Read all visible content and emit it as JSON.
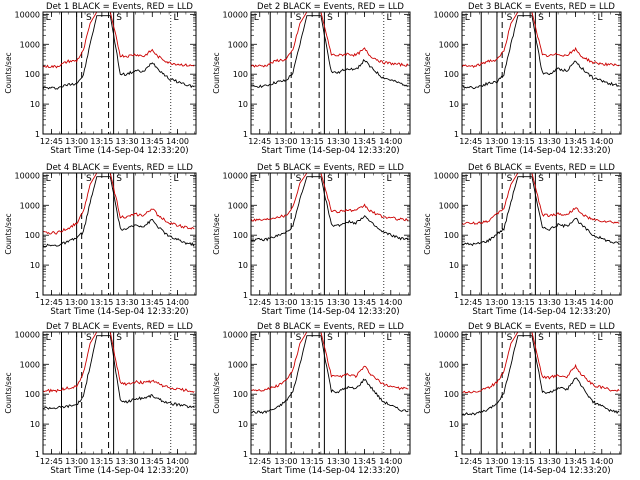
{
  "figure": {
    "panel_title_template": "Det {n} BLACK = Events, RED = LLD",
    "xlabel": "Start Time (14-Sep-04 12:33:20)",
    "ylabel": "Counts/sec"
  },
  "chart_data": [
    {
      "type": "line",
      "title": "Det 1 BLACK = Events, RED = LLD",
      "xlabel": "Start Time (14-Sep-04 12:33:20)",
      "ylabel": "Counts/sec",
      "xticks": [
        "12:45",
        "13:00",
        "13:15",
        "13:30",
        "13:45",
        "14:00"
      ],
      "yticks": [
        "1",
        "10",
        "100",
        "1000",
        "10000"
      ],
      "ylim": [
        1,
        12000
      ],
      "yscale": "log",
      "series": [
        {
          "name": "Events",
          "color": "#000000",
          "x": [
            "12:40",
            "12:48",
            "12:55",
            "13:00",
            "13:04",
            "13:08",
            "13:12",
            "13:20",
            "13:26",
            "13:30",
            "13:35",
            "13:40",
            "13:45",
            "13:48",
            "13:55",
            "14:05",
            "14:10"
          ],
          "y": [
            35,
            34,
            45,
            50,
            90,
            1000,
            9000,
            9000,
            100,
            100,
            130,
            120,
            260,
            160,
            70,
            45,
            38
          ]
        },
        {
          "name": "LLD",
          "color": "#cc0000",
          "x": [
            "12:40",
            "12:48",
            "12:55",
            "13:00",
            "13:04",
            "13:08",
            "13:12",
            "13:20",
            "13:26",
            "13:30",
            "13:35",
            "13:40",
            "13:45",
            "13:48",
            "13:55",
            "14:05",
            "14:10"
          ],
          "y": [
            180,
            180,
            270,
            280,
            600,
            5000,
            12000,
            12000,
            420,
            400,
            460,
            400,
            640,
            400,
            240,
            200,
            190
          ]
        }
      ],
      "annotations": [
        "L",
        "S",
        "S",
        "L"
      ]
    },
    {
      "type": "line",
      "title": "Det 2 BLACK = Events, RED = LLD",
      "xlabel": "Start Time (14-Sep-04 12:33:20)",
      "ylabel": "Counts/sec",
      "xticks": [
        "12:45",
        "13:00",
        "13:15",
        "13:30",
        "13:45",
        "14:00"
      ],
      "yticks": [
        "1",
        "10",
        "100",
        "1000",
        "10000"
      ],
      "ylim": [
        1,
        12000
      ],
      "yscale": "log",
      "series": [
        {
          "name": "Events",
          "color": "#000000",
          "x": [
            "12:40",
            "12:48",
            "12:55",
            "13:00",
            "13:04",
            "13:08",
            "13:12",
            "13:20",
            "13:26",
            "13:30",
            "13:35",
            "13:40",
            "13:45",
            "13:48",
            "13:55",
            "14:05",
            "14:10"
          ],
          "y": [
            40,
            40,
            55,
            60,
            110,
            1000,
            9000,
            9000,
            120,
            110,
            160,
            140,
            300,
            180,
            80,
            50,
            42
          ]
        },
        {
          "name": "LLD",
          "color": "#cc0000",
          "x": [
            "12:40",
            "12:48",
            "12:55",
            "13:00",
            "13:04",
            "13:08",
            "13:12",
            "13:20",
            "13:26",
            "13:30",
            "13:35",
            "13:40",
            "13:45",
            "13:48",
            "13:55",
            "14:05",
            "14:10"
          ],
          "y": [
            190,
            190,
            290,
            300,
            650,
            5000,
            12000,
            12000,
            450,
            420,
            480,
            430,
            700,
            420,
            250,
            210,
            200
          ]
        }
      ],
      "annotations": [
        "L",
        "S",
        "S",
        "L"
      ]
    },
    {
      "type": "line",
      "title": "Det 3 BLACK = Events, RED = LLD",
      "xlabel": "Start Time (14-Sep-04 12:33:20)",
      "ylabel": "Counts/sec",
      "xticks": [
        "12:45",
        "13:00",
        "13:15",
        "13:30",
        "13:45",
        "14:00"
      ],
      "yticks": [
        "1",
        "10",
        "100",
        "1000",
        "10000"
      ],
      "ylim": [
        1,
        12000
      ],
      "yscale": "log",
      "series": [
        {
          "name": "Events",
          "color": "#000000",
          "x": [
            "12:40",
            "12:48",
            "12:55",
            "13:00",
            "13:04",
            "13:08",
            "13:12",
            "13:20",
            "13:26",
            "13:30",
            "13:35",
            "13:40",
            "13:45",
            "13:48",
            "13:55",
            "14:05",
            "14:10"
          ],
          "y": [
            38,
            36,
            50,
            55,
            100,
            1000,
            9000,
            9000,
            110,
            100,
            150,
            130,
            280,
            170,
            75,
            48,
            40
          ]
        },
        {
          "name": "LLD",
          "color": "#cc0000",
          "x": [
            "12:40",
            "12:48",
            "12:55",
            "13:00",
            "13:04",
            "13:08",
            "13:12",
            "13:20",
            "13:26",
            "13:30",
            "13:35",
            "13:40",
            "13:45",
            "13:48",
            "13:55",
            "14:05",
            "14:10"
          ],
          "y": [
            185,
            185,
            280,
            290,
            620,
            5000,
            12000,
            12000,
            430,
            410,
            470,
            420,
            680,
            410,
            245,
            205,
            195
          ]
        }
      ],
      "annotations": [
        "L",
        "S",
        "S",
        "L"
      ]
    },
    {
      "type": "line",
      "title": "Det 4 BLACK = Events, RED = LLD",
      "xlabel": "Start Time (14-Sep-04 12:33:20)",
      "ylabel": "Counts/sec",
      "xticks": [
        "12:45",
        "13:00",
        "13:15",
        "13:30",
        "13:45",
        "14:00"
      ],
      "yticks": [
        "1",
        "10",
        "100",
        "1000",
        "10000"
      ],
      "ylim": [
        1,
        12000
      ],
      "yscale": "log",
      "series": [
        {
          "name": "Events",
          "color": "#000000",
          "x": [
            "12:40",
            "12:48",
            "12:55",
            "13:00",
            "13:04",
            "13:08",
            "13:12",
            "13:20",
            "13:26",
            "13:30",
            "13:35",
            "13:40",
            "13:45",
            "13:48",
            "13:55",
            "14:05",
            "14:10"
          ],
          "y": [
            45,
            45,
            60,
            80,
            130,
            1200,
            9000,
            9000,
            160,
            160,
            220,
            200,
            330,
            200,
            90,
            55,
            48
          ]
        },
        {
          "name": "LLD",
          "color": "#cc0000",
          "x": [
            "12:40",
            "12:48",
            "12:55",
            "13:00",
            "13:04",
            "13:08",
            "13:12",
            "13:20",
            "13:26",
            "13:30",
            "13:35",
            "13:40",
            "13:45",
            "13:48",
            "13:55",
            "14:05",
            "14:10"
          ],
          "y": [
            120,
            120,
            170,
            250,
            600,
            5000,
            12000,
            12000,
            420,
            400,
            500,
            450,
            800,
            480,
            260,
            180,
            160
          ]
        }
      ],
      "annotations": [
        "L",
        "S",
        "S",
        "L"
      ]
    },
    {
      "type": "line",
      "title": "Det 5 BLACK = Events, RED = LLD",
      "xlabel": "Start Time (14-Sep-04 12:33:20)",
      "ylabel": "Counts/sec",
      "xticks": [
        "12:45",
        "13:00",
        "13:15",
        "13:30",
        "13:45",
        "14:00"
      ],
      "yticks": [
        "1",
        "10",
        "100",
        "1000",
        "10000"
      ],
      "ylim": [
        1,
        12000
      ],
      "yscale": "log",
      "series": [
        {
          "name": "Events",
          "color": "#000000",
          "x": [
            "12:40",
            "12:48",
            "12:55",
            "13:00",
            "13:04",
            "13:08",
            "13:12",
            "13:20",
            "13:26",
            "13:30",
            "13:35",
            "13:40",
            "13:45",
            "13:48",
            "13:55",
            "14:05",
            "14:10"
          ],
          "y": [
            70,
            70,
            95,
            120,
            200,
            1500,
            9000,
            9000,
            220,
            210,
            280,
            260,
            450,
            280,
            130,
            80,
            70
          ]
        },
        {
          "name": "LLD",
          "color": "#cc0000",
          "x": [
            "12:40",
            "12:48",
            "12:55",
            "13:00",
            "13:04",
            "13:08",
            "13:12",
            "13:20",
            "13:26",
            "13:30",
            "13:35",
            "13:40",
            "13:45",
            "13:48",
            "13:55",
            "14:05",
            "14:10"
          ],
          "y": [
            330,
            330,
            420,
            450,
            900,
            5500,
            12000,
            12000,
            650,
            620,
            700,
            640,
            1000,
            650,
            420,
            340,
            320
          ]
        }
      ],
      "annotations": [
        "L",
        "S",
        "S",
        "L"
      ]
    },
    {
      "type": "line",
      "title": "Det 6 BLACK = Events, RED = LLD",
      "xlabel": "Start Time (14-Sep-04 12:33:20)",
      "ylabel": "Counts/sec",
      "xticks": [
        "12:45",
        "13:00",
        "13:15",
        "13:30",
        "13:45",
        "14:00"
      ],
      "yticks": [
        "1",
        "10",
        "100",
        "1000",
        "10000"
      ],
      "ylim": [
        1,
        12000
      ],
      "yscale": "log",
      "series": [
        {
          "name": "Events",
          "color": "#000000",
          "x": [
            "12:40",
            "12:48",
            "12:55",
            "13:00",
            "13:04",
            "13:08",
            "13:12",
            "13:20",
            "13:26",
            "13:30",
            "13:35",
            "13:40",
            "13:45",
            "13:48",
            "13:55",
            "14:05",
            "14:10"
          ],
          "y": [
            50,
            50,
            65,
            110,
            160,
            1300,
            9000,
            9000,
            170,
            160,
            220,
            200,
            380,
            230,
            100,
            60,
            52
          ]
        },
        {
          "name": "LLD",
          "color": "#cc0000",
          "x": [
            "12:40",
            "12:48",
            "12:55",
            "13:00",
            "13:04",
            "13:08",
            "13:12",
            "13:20",
            "13:26",
            "13:30",
            "13:35",
            "13:40",
            "13:45",
            "13:48",
            "13:55",
            "14:05",
            "14:10"
          ],
          "y": [
            250,
            250,
            300,
            500,
            800,
            5000,
            12000,
            12000,
            480,
            450,
            520,
            470,
            850,
            520,
            320,
            270,
            250
          ]
        }
      ],
      "annotations": [
        "L",
        "S",
        "S",
        "L"
      ]
    },
    {
      "type": "line",
      "title": "Det 7 BLACK = Events, RED = LLD",
      "xlabel": "Start Time (14-Sep-04 12:33:20)",
      "ylabel": "Counts/sec",
      "xticks": [
        "12:45",
        "13:00",
        "13:15",
        "13:30",
        "13:45",
        "14:00"
      ],
      "yticks": [
        "1",
        "10",
        "100",
        "1000",
        "10000"
      ],
      "ylim": [
        1,
        12000
      ],
      "yscale": "log",
      "series": [
        {
          "name": "Events",
          "color": "#000000",
          "x": [
            "12:40",
            "12:48",
            "12:55",
            "13:00",
            "13:04",
            "13:08",
            "13:12",
            "13:20",
            "13:26",
            "13:30",
            "13:35",
            "13:40",
            "13:45",
            "13:48",
            "13:55",
            "14:05",
            "14:10"
          ],
          "y": [
            35,
            35,
            40,
            45,
            80,
            900,
            9000,
            9000,
            60,
            55,
            70,
            75,
            90,
            70,
            50,
            40,
            35
          ]
        },
        {
          "name": "LLD",
          "color": "#cc0000",
          "x": [
            "12:40",
            "12:48",
            "12:55",
            "13:00",
            "13:04",
            "13:08",
            "13:12",
            "13:20",
            "13:26",
            "13:30",
            "13:35",
            "13:40",
            "13:45",
            "13:48",
            "13:55",
            "14:05",
            "14:10"
          ],
          "y": [
            130,
            130,
            160,
            180,
            500,
            5000,
            12000,
            12000,
            230,
            220,
            260,
            240,
            280,
            230,
            160,
            135,
            125
          ]
        }
      ],
      "annotations": [
        "L",
        "S",
        "S",
        "L"
      ]
    },
    {
      "type": "line",
      "title": "Det 8 BLACK = Events, RED = LLD",
      "xlabel": "Start Time (14-Sep-04 12:33:20)",
      "ylabel": "Counts/sec",
      "xticks": [
        "12:45",
        "13:00",
        "13:15",
        "13:30",
        "13:45",
        "14:00"
      ],
      "yticks": [
        "1",
        "10",
        "100",
        "1000",
        "10000"
      ],
      "ylim": [
        1,
        12000
      ],
      "yscale": "log",
      "series": [
        {
          "name": "Events",
          "color": "#000000",
          "x": [
            "12:40",
            "12:48",
            "12:55",
            "13:00",
            "13:04",
            "13:08",
            "13:12",
            "13:20",
            "13:26",
            "13:30",
            "13:35",
            "13:40",
            "13:45",
            "13:48",
            "13:55",
            "14:05",
            "14:10"
          ],
          "y": [
            25,
            25,
            35,
            60,
            120,
            1000,
            9000,
            9000,
            130,
            120,
            170,
            150,
            320,
            190,
            60,
            30,
            27
          ]
        },
        {
          "name": "LLD",
          "color": "#cc0000",
          "x": [
            "12:40",
            "12:48",
            "12:55",
            "13:00",
            "13:04",
            "13:08",
            "13:12",
            "13:20",
            "13:26",
            "13:30",
            "13:35",
            "13:40",
            "13:45",
            "13:48",
            "13:55",
            "14:05",
            "14:10"
          ],
          "y": [
            140,
            140,
            190,
            280,
            650,
            5000,
            12000,
            12000,
            400,
            380,
            450,
            400,
            850,
            500,
            220,
            160,
            150
          ]
        }
      ],
      "annotations": [
        "L",
        "S",
        "S",
        "L"
      ]
    },
    {
      "type": "line",
      "title": "Det 9 BLACK = Events, RED = LLD",
      "xlabel": "Start Time (14-Sep-04 12:33:20)",
      "ylabel": "Counts/sec",
      "xticks": [
        "12:45",
        "13:00",
        "13:15",
        "13:30",
        "13:45",
        "14:00"
      ],
      "yticks": [
        "1",
        "10",
        "100",
        "1000",
        "10000"
      ],
      "ylim": [
        1,
        12000
      ],
      "yscale": "log",
      "series": [
        {
          "name": "Events",
          "color": "#000000",
          "x": [
            "12:40",
            "12:48",
            "12:55",
            "13:00",
            "13:04",
            "13:08",
            "13:12",
            "13:20",
            "13:26",
            "13:30",
            "13:35",
            "13:40",
            "13:45",
            "13:48",
            "13:55",
            "14:05",
            "14:10"
          ],
          "y": [
            22,
            22,
            30,
            50,
            110,
            1000,
            9000,
            9000,
            120,
            110,
            160,
            140,
            360,
            200,
            55,
            28,
            25
          ]
        },
        {
          "name": "LLD",
          "color": "#cc0000",
          "x": [
            "12:40",
            "12:48",
            "12:55",
            "13:00",
            "13:04",
            "13:08",
            "13:12",
            "13:20",
            "13:26",
            "13:30",
            "13:35",
            "13:40",
            "13:45",
            "13:48",
            "13:55",
            "14:05",
            "14:10"
          ],
          "y": [
            120,
            120,
            160,
            250,
            600,
            5000,
            12000,
            12000,
            380,
            360,
            430,
            380,
            900,
            480,
            200,
            140,
            130
          ]
        }
      ],
      "annotations": [
        "L",
        "S",
        "S",
        "L"
      ]
    }
  ]
}
